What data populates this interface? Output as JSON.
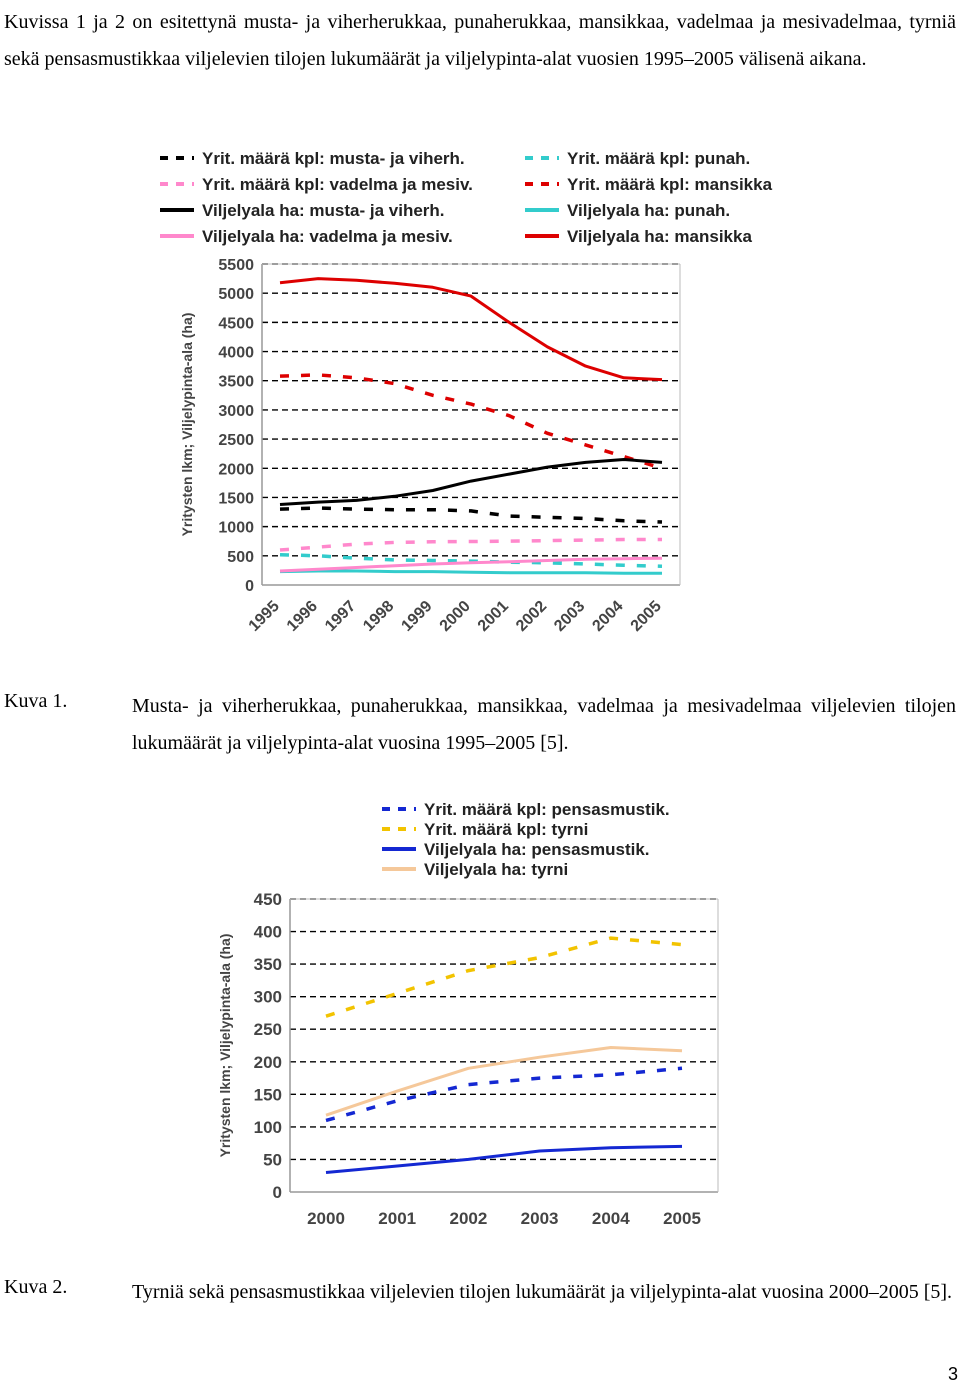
{
  "intro_text": "Kuvissa 1 ja 2 on esitettynä musta- ja viherherukkaa, punaherukkaa, mansikkaa, vadelmaa ja mesivadelmaa, tyrniä sekä pensasmustikkaa viljelevien tilojen lukumäärät ja viljelypinta-alat vuosien 1995–2005 välisenä aikana.",
  "figure1": {
    "label": "Kuva 1.",
    "caption": "Musta- ja viherherukkaa, punaherukkaa, mansikkaa, vadelmaa ja mesivadelmaa viljelevien tilojen lukumäärät ja viljelypinta-alat vuosina 1995–2005 [5]."
  },
  "figure2": {
    "label": "Kuva 2.",
    "caption": "Tyrniä sekä pensasmustikkaa viljelevien tilojen lukumäärät ja viljelypinta-alat vuosina 2000–2005 [5]."
  },
  "page_number": "3",
  "chart_data": [
    {
      "type": "line",
      "ylabel": "Yritysten lkm; Viljelypinta-ala (ha)",
      "ylim": [
        0,
        5500
      ],
      "yticks": [
        0,
        500,
        1000,
        1500,
        2000,
        2500,
        3000,
        3500,
        4000,
        4500,
        5000,
        5500
      ],
      "x": [
        "1995",
        "1996",
        "1997",
        "1998",
        "1999",
        "2000",
        "2001",
        "2002",
        "2003",
        "2004",
        "2005"
      ],
      "grid": "horizontal dashed",
      "legend_position": "top",
      "series": [
        {
          "name": "Yrit. määrä kpl: musta- ja viherh.",
          "style": "dashed",
          "color": "#000000",
          "values": [
            1300,
            1320,
            1300,
            1290,
            1290,
            1270,
            1180,
            1160,
            1140,
            1100,
            1080
          ]
        },
        {
          "name": "Yrit. määrä kpl: punah.",
          "style": "dashed",
          "color": "#33cccc",
          "values": [
            520,
            500,
            460,
            430,
            420,
            410,
            390,
            380,
            360,
            340,
            320
          ]
        },
        {
          "name": "Yrit. määrä kpl: vadelma ja mesiv.",
          "style": "dashed",
          "color": "#ff88cc",
          "values": [
            600,
            650,
            700,
            730,
            740,
            745,
            750,
            760,
            770,
            780,
            780
          ]
        },
        {
          "name": "Yrit. määrä kpl: mansikka",
          "style": "dashed",
          "color": "#dd0000",
          "values": [
            3580,
            3600,
            3550,
            3450,
            3250,
            3100,
            2900,
            2600,
            2400,
            2200,
            2000
          ]
        },
        {
          "name": "Viljelyala ha: musta- ja viherh.",
          "style": "solid",
          "color": "#000000",
          "values": [
            1380,
            1420,
            1450,
            1520,
            1620,
            1780,
            1900,
            2020,
            2100,
            2150,
            2100
          ]
        },
        {
          "name": "Viljelyala ha: punah.",
          "style": "solid",
          "color": "#33cccc",
          "values": [
            230,
            240,
            240,
            230,
            230,
            220,
            210,
            210,
            210,
            200,
            200
          ]
        },
        {
          "name": "Viljelyala ha: vadelma ja mesiv.",
          "style": "solid",
          "color": "#ff88cc",
          "values": [
            240,
            270,
            300,
            330,
            360,
            380,
            400,
            420,
            440,
            450,
            460
          ]
        },
        {
          "name": "Viljelyala ha: mansikka",
          "style": "solid",
          "color": "#dd0000",
          "values": [
            5180,
            5250,
            5220,
            5170,
            5100,
            4950,
            4500,
            4080,
            3750,
            3550,
            3520
          ]
        }
      ]
    },
    {
      "type": "line",
      "ylabel": "Yritysten lkm; Viljelypinta-ala (ha)",
      "ylim": [
        0,
        450
      ],
      "yticks": [
        0,
        50,
        100,
        150,
        200,
        250,
        300,
        350,
        400,
        450
      ],
      "x": [
        "2000",
        "2001",
        "2002",
        "2003",
        "2004",
        "2005"
      ],
      "grid": "horizontal dashed",
      "legend_position": "top",
      "series": [
        {
          "name": "Yrit. määrä kpl: pensasmustik.",
          "style": "dashed",
          "color": "#1428d2",
          "values": [
            110,
            140,
            165,
            175,
            180,
            190
          ]
        },
        {
          "name": "Yrit. määrä kpl: tyrni",
          "style": "dashed",
          "color": "#f2c300",
          "values": [
            270,
            305,
            340,
            360,
            390,
            380
          ]
        },
        {
          "name": "Viljelyala ha: pensasmustik.",
          "style": "solid",
          "color": "#1428d2",
          "values": [
            30,
            40,
            50,
            63,
            68,
            70
          ]
        },
        {
          "name": "Viljelyala ha: tyrni",
          "style": "solid",
          "color": "#f5c89a",
          "values": [
            118,
            155,
            190,
            207,
            222,
            217
          ]
        }
      ]
    }
  ]
}
